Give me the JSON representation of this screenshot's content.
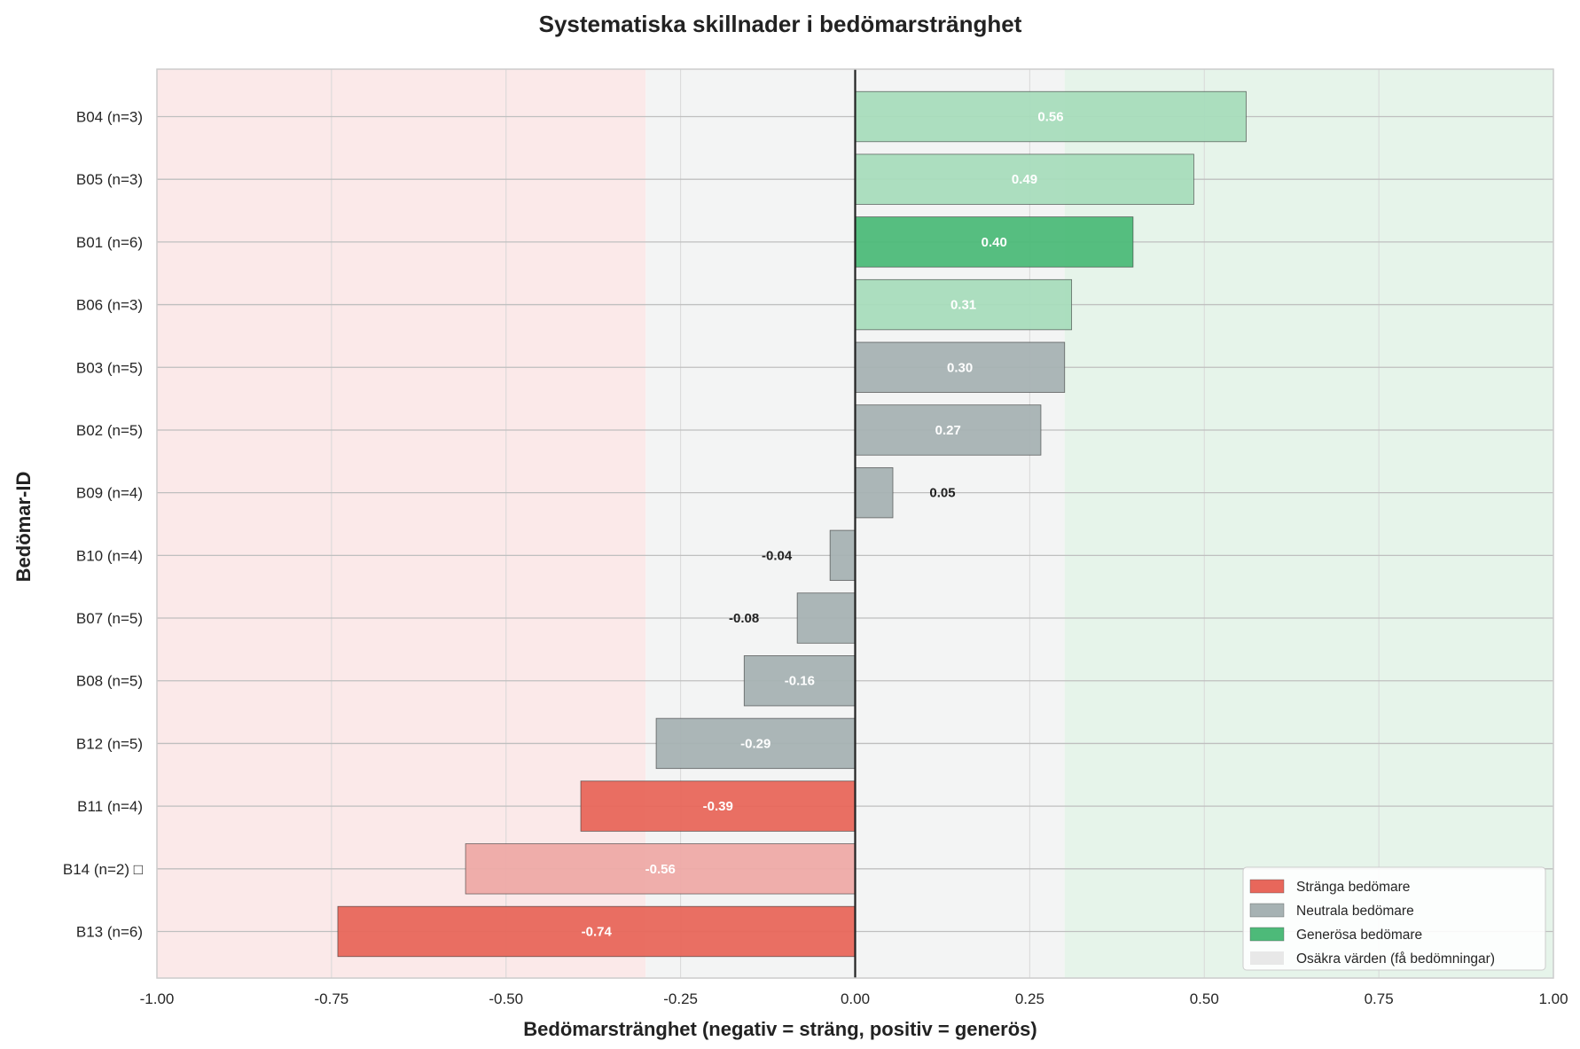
{
  "chart_data": {
    "type": "bar",
    "orientation": "horizontal",
    "title": "Systematiska skillnader i bedömarstränghet",
    "xlabel": "Bedömarstränghet (negativ = sträng, positiv = generös)",
    "ylabel": "Bedömar-ID",
    "xlim": [
      -1.0,
      1.0
    ],
    "x_ticks": [
      "-1.00",
      "-0.75",
      "-0.50",
      "-0.25",
      "0.00",
      "0.25",
      "0.50",
      "0.75",
      "1.00"
    ],
    "x_tick_values": [
      -1.0,
      -0.75,
      -0.5,
      -0.25,
      0.0,
      0.25,
      0.5,
      0.75,
      1.0
    ],
    "grid": true,
    "background_zones": [
      {
        "from": -1.0,
        "to": -0.3,
        "color": "#fbe9e9"
      },
      {
        "from": -0.3,
        "to": 0.3,
        "color": "#f3f4f4"
      },
      {
        "from": 0.3,
        "to": 1.0,
        "color": "#e6f4ea"
      }
    ],
    "categories": [
      "B04 (n=3)",
      "B05 (n=3)",
      "B01 (n=6)",
      "B06 (n=3)",
      "B03 (n=5)",
      "B02 (n=5)",
      "B09 (n=4)",
      "B10 (n=4)",
      "B07 (n=5)",
      "B08 (n=5)",
      "B12 (n=5)",
      "B11 (n=4)",
      "B14 (n=2) □",
      "B13 (n=6)"
    ],
    "values": [
      0.56,
      0.485,
      0.398,
      0.31,
      0.3,
      0.266,
      0.054,
      -0.036,
      -0.083,
      -0.159,
      -0.285,
      -0.393,
      -0.558,
      -0.741
    ],
    "labels": [
      "0.56",
      "0.49",
      "0.40",
      "0.31",
      "0.30",
      "0.27",
      "0.05",
      "-0.04",
      "-0.08",
      "-0.16",
      "-0.29",
      "-0.39",
      "-0.56",
      "-0.74"
    ],
    "groups": [
      "generous",
      "generous",
      "generous",
      "generous",
      "neutral",
      "neutral",
      "neutral",
      "neutral",
      "neutral",
      "neutral",
      "neutral",
      "strict",
      "strict",
      "strict"
    ],
    "uncertain": [
      true,
      true,
      false,
      true,
      false,
      false,
      false,
      false,
      false,
      false,
      false,
      false,
      true,
      false
    ],
    "colors": {
      "strict": "#e8675b",
      "neutral": "#a6b2b3",
      "generous": "#4dba79",
      "strict_light": "#eeaaa6",
      "generous_light": "#a8dcbc",
      "uncertain_patch": "#e8e8e8"
    },
    "legend": {
      "placement": "lower-right",
      "entries": [
        "Stränga bedömare",
        "Neutrala bedömare",
        "Generösa bedömare",
        "Osäkra värden (få bedömningar)"
      ]
    }
  }
}
